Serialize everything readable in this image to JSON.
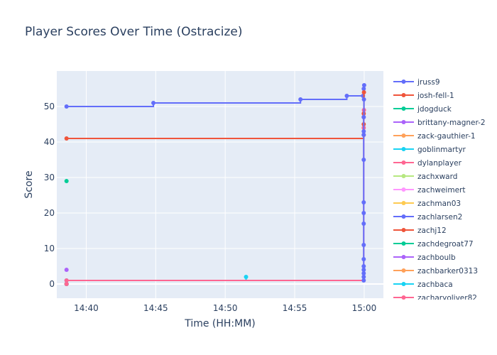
{
  "chart_data": {
    "type": "line",
    "title": "Player Scores Over Time (Ostracize)",
    "xlabel": "Time (HH:MM)",
    "ylabel": "Score",
    "x_format": "HH:MM",
    "xlim": [
      "14:37:53",
      "15:01:23"
    ],
    "ylim": [
      -4,
      60
    ],
    "x_ticks": [
      {
        "value": "14:40:00",
        "label": "14:40"
      },
      {
        "value": "14:45:00",
        "label": "14:45"
      },
      {
        "value": "14:50:00",
        "label": "14:50"
      },
      {
        "value": "14:55:00",
        "label": "14:55"
      },
      {
        "value": "15:00:00",
        "label": "15:00"
      }
    ],
    "y_ticks": [
      0,
      10,
      20,
      30,
      40,
      50
    ],
    "grid": true,
    "line_shape": "step",
    "legend_position": "right",
    "colors": {
      "plot_bg": "#e5ecf6",
      "grid": "#ffffff",
      "text": "#2a3f5f"
    },
    "series": [
      {
        "name": "jruss9",
        "color": "#636efa",
        "points": [
          [
            "14:38:35",
            50
          ],
          [
            "14:44:50",
            51
          ],
          [
            "14:55:25",
            52
          ],
          [
            "14:58:45",
            53
          ],
          [
            "14:59:55",
            53
          ],
          [
            "14:59:58",
            55
          ],
          [
            "15:00:00",
            56
          ]
        ]
      },
      {
        "name": "josh-fell-1",
        "color": "#EF553B",
        "points": [
          [
            "14:38:35",
            41
          ],
          [
            "14:59:58",
            42
          ],
          [
            "14:59:58",
            45
          ],
          [
            "14:59:58",
            48
          ],
          [
            "14:59:59",
            54
          ]
        ]
      },
      {
        "name": "jdogduck",
        "color": "#00cc96",
        "points": [
          [
            "14:38:35",
            29
          ]
        ]
      },
      {
        "name": "brittany-magner-2",
        "color": "#ab63fa",
        "points": [
          [
            "14:38:35",
            4
          ]
        ]
      },
      {
        "name": "zack-gauthier-1",
        "color": "#FFA15A",
        "points": [
          [
            "14:38:35",
            0
          ]
        ]
      },
      {
        "name": "goblinmartyr",
        "color": "#19d3f3",
        "points": [
          [
            "14:38:35",
            1
          ],
          [
            "14:51:30",
            2
          ]
        ]
      },
      {
        "name": "dylanplayer",
        "color": "#FF6692",
        "points": [
          [
            "14:38:35",
            1
          ],
          [
            "14:59:58",
            44
          ],
          [
            "14:59:58",
            47
          ],
          [
            "14:59:59",
            49
          ]
        ]
      },
      {
        "name": "zachxward",
        "color": "#B6E880",
        "points": [
          [
            "14:38:35",
            0
          ]
        ]
      },
      {
        "name": "zachweimert",
        "color": "#FF97FF",
        "points": [
          [
            "14:38:35",
            0
          ]
        ]
      },
      {
        "name": "zachman03",
        "color": "#FECB52",
        "points": [
          [
            "14:38:35",
            0
          ]
        ]
      },
      {
        "name": "zachlarsen2",
        "color": "#636efa",
        "points": [
          [
            "14:59:58",
            1
          ],
          [
            "14:59:58",
            2
          ],
          [
            "14:59:58",
            3
          ],
          [
            "14:59:58",
            4
          ],
          [
            "14:59:58",
            5
          ],
          [
            "14:59:58",
            7
          ],
          [
            "14:59:58",
            11
          ],
          [
            "14:59:58",
            17
          ],
          [
            "14:59:58",
            20
          ],
          [
            "14:59:58",
            23
          ],
          [
            "14:59:58",
            35
          ],
          [
            "14:59:58",
            42
          ],
          [
            "14:59:58",
            43
          ],
          [
            "14:59:58",
            47
          ],
          [
            "14:59:59",
            52
          ]
        ]
      },
      {
        "name": "zachj12",
        "color": "#EF553B",
        "points": [
          [
            "14:38:35",
            0
          ]
        ]
      },
      {
        "name": "zachdegroat77",
        "color": "#00cc96",
        "points": [
          [
            "14:38:35",
            0
          ]
        ]
      },
      {
        "name": "zachboulb",
        "color": "#ab63fa",
        "points": [
          [
            "14:38:35",
            0
          ]
        ]
      },
      {
        "name": "zachbarker0313",
        "color": "#FFA15A",
        "points": [
          [
            "14:38:35",
            0
          ]
        ]
      },
      {
        "name": "zachbaca",
        "color": "#19d3f3",
        "points": [
          [
            "14:38:35",
            0
          ]
        ]
      },
      {
        "name": "zacharyoliver82",
        "color": "#FF6692",
        "points": [
          [
            "14:38:35",
            0
          ]
        ]
      }
    ]
  }
}
